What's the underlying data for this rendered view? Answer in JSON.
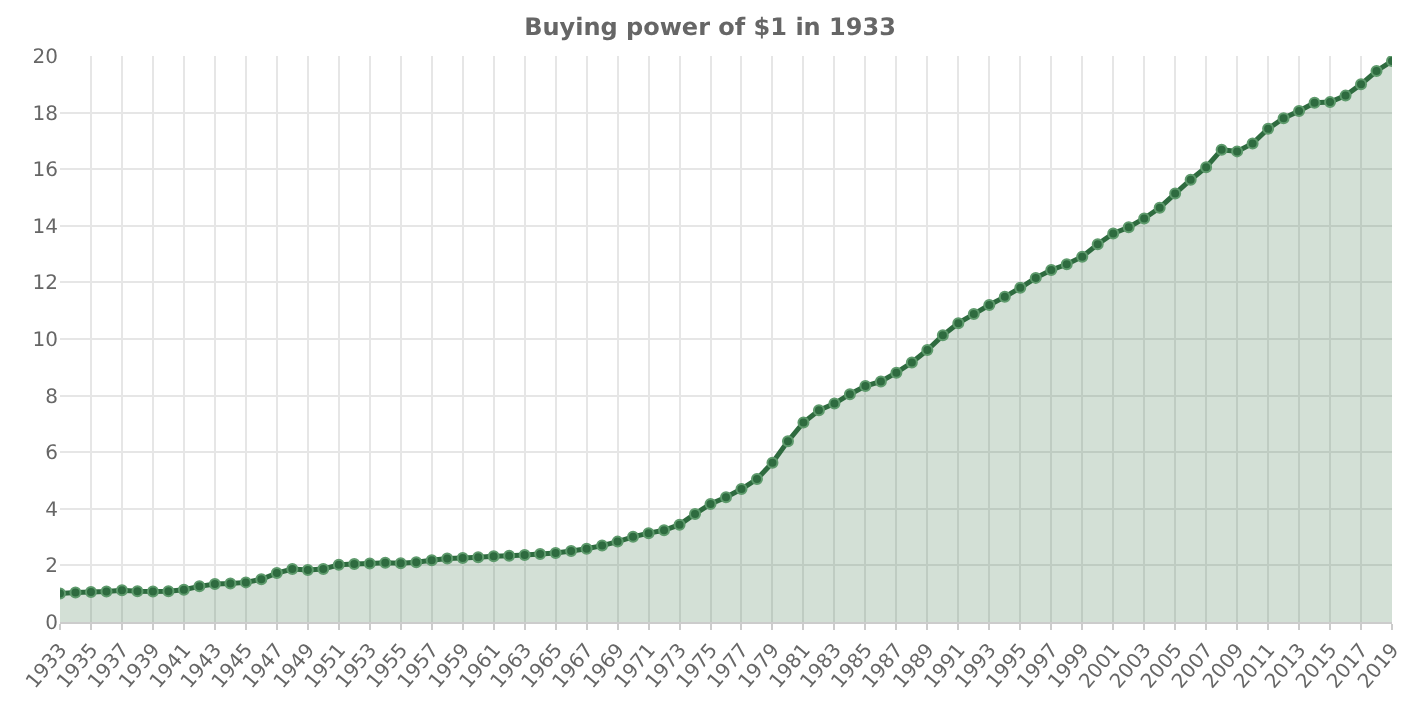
{
  "chart_data": {
    "type": "area",
    "title": "Buying power of $1 in 1933",
    "x": [
      1933,
      1934,
      1935,
      1936,
      1937,
      1938,
      1939,
      1940,
      1941,
      1942,
      1943,
      1944,
      1945,
      1946,
      1947,
      1948,
      1949,
      1950,
      1951,
      1952,
      1953,
      1954,
      1955,
      1956,
      1957,
      1958,
      1959,
      1960,
      1961,
      1962,
      1963,
      1964,
      1965,
      1966,
      1967,
      1968,
      1969,
      1970,
      1971,
      1972,
      1973,
      1974,
      1975,
      1976,
      1977,
      1978,
      1979,
      1980,
      1981,
      1982,
      1983,
      1984,
      1985,
      1986,
      1987,
      1988,
      1989,
      1990,
      1991,
      1992,
      1993,
      1994,
      1995,
      1996,
      1997,
      1998,
      1999,
      2000,
      2001,
      2002,
      2003,
      2004,
      2005,
      2006,
      2007,
      2008,
      2009,
      2010,
      2011,
      2012,
      2013,
      2014,
      2015,
      2016,
      2017,
      2018,
      2019
    ],
    "series": [
      {
        "color": "#2e6b3f",
        "values": [
          1.01,
          1.04,
          1.06,
          1.08,
          1.12,
          1.09,
          1.08,
          1.09,
          1.14,
          1.26,
          1.34,
          1.36,
          1.4,
          1.51,
          1.73,
          1.87,
          1.84,
          1.87,
          2.02,
          2.05,
          2.07,
          2.09,
          2.08,
          2.11,
          2.18,
          2.24,
          2.26,
          2.29,
          2.32,
          2.34,
          2.37,
          2.4,
          2.44,
          2.51,
          2.59,
          2.7,
          2.84,
          3.01,
          3.14,
          3.24,
          3.44,
          3.82,
          4.17,
          4.41,
          4.7,
          5.05,
          5.63,
          6.39,
          7.05,
          7.48,
          7.72,
          8.05,
          8.34,
          8.5,
          8.81,
          9.17,
          9.61,
          10.13,
          10.56,
          10.88,
          11.2,
          11.49,
          11.81,
          12.16,
          12.44,
          12.64,
          12.91,
          13.35,
          13.73,
          13.95,
          14.26,
          14.64,
          15.14,
          15.63,
          16.07,
          16.69,
          16.63,
          16.91,
          17.43,
          17.8,
          18.06,
          18.35,
          18.37,
          18.6,
          19.0,
          19.47,
          19.82
        ]
      }
    ],
    "xlim": [
      1933,
      2019
    ],
    "xticks": [
      1933,
      1935,
      1937,
      1939,
      1941,
      1943,
      1945,
      1947,
      1949,
      1951,
      1953,
      1955,
      1957,
      1959,
      1961,
      1963,
      1965,
      1967,
      1969,
      1971,
      1973,
      1975,
      1977,
      1979,
      1981,
      1983,
      1985,
      1987,
      1989,
      1991,
      1993,
      1995,
      1997,
      1999,
      2001,
      2003,
      2005,
      2007,
      2009,
      2011,
      2013,
      2015,
      2017,
      2019
    ],
    "ylim": [
      0,
      20
    ],
    "yticks": [
      0,
      2,
      4,
      6,
      8,
      10,
      12,
      14,
      16,
      18,
      20
    ],
    "grid": true,
    "legend": false,
    "marker": "circle",
    "line_style": "solid"
  }
}
